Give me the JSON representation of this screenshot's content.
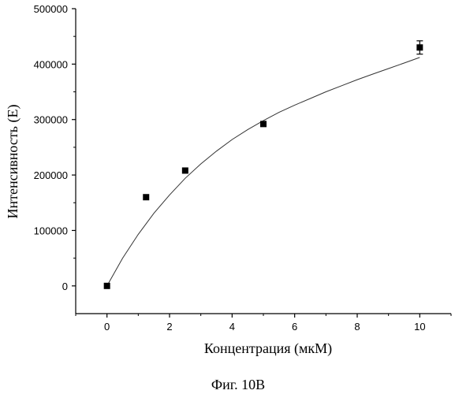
{
  "chart_data": {
    "type": "scatter",
    "xlabel": "Концентрация (мкМ)",
    "ylabel": "Интенсивность (E)",
    "xlim": [
      -1,
      11
    ],
    "ylim": [
      -50000,
      500000
    ],
    "x_ticks": [
      0,
      2,
      4,
      6,
      8,
      10
    ],
    "y_ticks": [
      0,
      100000,
      200000,
      300000,
      400000,
      500000
    ],
    "x_tick_labels": [
      "0",
      "2",
      "4",
      "6",
      "8",
      "10"
    ],
    "y_tick_labels": [
      "0",
      "100000",
      "200000",
      "300000",
      "400000",
      "500000"
    ],
    "grid": false,
    "series": [
      {
        "marker": "square",
        "x": [
          0,
          1.25,
          2.5,
          5,
          10
        ],
        "y": [
          0,
          160000,
          208000,
          292000,
          430000
        ],
        "y_error": [
          0,
          0,
          0,
          0,
          12000
        ]
      }
    ],
    "fit_curve": {
      "style": "line",
      "x": [
        0,
        0.5,
        1,
        1.5,
        2,
        2.5,
        3,
        3.5,
        4,
        4.5,
        5,
        5.5,
        6,
        6.5,
        7,
        7.5,
        8,
        8.5,
        9,
        9.5,
        10
      ],
      "y": [
        0,
        50000,
        93000,
        131000,
        164000,
        194000,
        220000,
        243000,
        264000,
        282000,
        298000,
        313000,
        326000,
        338000,
        350000,
        361000,
        372000,
        382000,
        392000,
        402000,
        412000
      ]
    }
  },
  "caption": "Фиг. 10B"
}
